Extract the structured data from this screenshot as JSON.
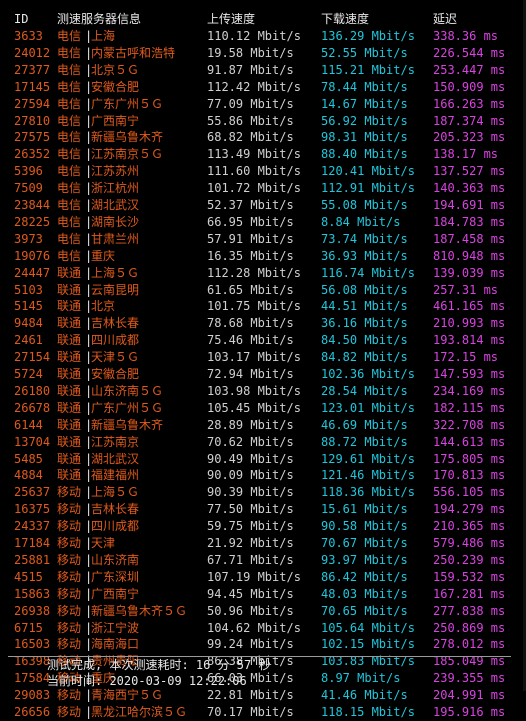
{
  "header": {
    "id": "ID",
    "server": "测速服务器信息",
    "upload": "上传速度",
    "download": "下载速度",
    "latency": "延迟"
  },
  "rows": [
    {
      "id": "3633",
      "isp": "电信",
      "sep": "|",
      "loc": "上海",
      "up": "110.12 Mbit/s",
      "down": "136.29 Mbit/s",
      "lat": "338.36 ms"
    },
    {
      "id": "24012",
      "isp": "电信",
      "sep": "|",
      "loc": "内蒙古呼和浩特",
      "up": "19.58 Mbit/s",
      "down": "52.55 Mbit/s",
      "lat": "226.544 ms"
    },
    {
      "id": "27377",
      "isp": "电信",
      "sep": "|",
      "loc": "北京５Ｇ",
      "up": "91.87 Mbit/s",
      "down": "115.21 Mbit/s",
      "lat": "253.447 ms"
    },
    {
      "id": "17145",
      "isp": "电信",
      "sep": "|",
      "loc": "安徽合肥",
      "up": "112.42 Mbit/s",
      "down": "78.44 Mbit/s",
      "lat": "150.909 ms"
    },
    {
      "id": "27594",
      "isp": "电信",
      "sep": "|",
      "loc": "广东广州５Ｇ",
      "up": "77.09 Mbit/s",
      "down": "14.67 Mbit/s",
      "lat": "166.263 ms"
    },
    {
      "id": "27810",
      "isp": "电信",
      "sep": "|",
      "loc": "广西南宁",
      "up": "55.86 Mbit/s",
      "down": "56.92 Mbit/s",
      "lat": "187.374 ms"
    },
    {
      "id": "27575",
      "isp": "电信",
      "sep": "|",
      "loc": "新疆乌鲁木齐",
      "up": "68.82 Mbit/s",
      "down": "98.31 Mbit/s",
      "lat": "205.323 ms"
    },
    {
      "id": "26352",
      "isp": "电信",
      "sep": "|",
      "loc": "江苏南京５Ｇ",
      "up": "113.49 Mbit/s",
      "down": "88.40 Mbit/s",
      "lat": "138.17 ms"
    },
    {
      "id": "5396",
      "isp": "电信",
      "sep": "|",
      "loc": "江苏苏州",
      "up": "111.60 Mbit/s",
      "down": "120.41 Mbit/s",
      "lat": "137.527 ms"
    },
    {
      "id": "7509",
      "isp": "电信",
      "sep": "|",
      "loc": "浙江杭州",
      "up": "101.72 Mbit/s",
      "down": "112.91 Mbit/s",
      "lat": "140.363 ms"
    },
    {
      "id": "23844",
      "isp": "电信",
      "sep": "|",
      "loc": "湖北武汉",
      "up": "52.37 Mbit/s",
      "down": "55.08 Mbit/s",
      "lat": "194.691 ms"
    },
    {
      "id": "28225",
      "isp": "电信",
      "sep": "|",
      "loc": "湖南长沙",
      "up": "66.95 Mbit/s",
      "down": "8.84 Mbit/s",
      "lat": "184.783 ms"
    },
    {
      "id": "3973",
      "isp": "电信",
      "sep": "|",
      "loc": "甘肃兰州",
      "up": "57.91 Mbit/s",
      "down": "73.74 Mbit/s",
      "lat": "187.458 ms"
    },
    {
      "id": "19076",
      "isp": "电信",
      "sep": "|",
      "loc": "重庆",
      "up": "16.35 Mbit/s",
      "down": "36.93 Mbit/s",
      "lat": "810.948 ms"
    },
    {
      "id": "24447",
      "isp": "联通",
      "sep": "|",
      "loc": "上海５Ｇ",
      "up": "112.28 Mbit/s",
      "down": "116.74 Mbit/s",
      "lat": "139.039 ms"
    },
    {
      "id": "5103",
      "isp": "联通",
      "sep": "|",
      "loc": "云南昆明",
      "up": "61.65 Mbit/s",
      "down": "56.08 Mbit/s",
      "lat": "257.31 ms"
    },
    {
      "id": "5145",
      "isp": "联通",
      "sep": "|",
      "loc": "北京",
      "up": "101.75 Mbit/s",
      "down": "44.51 Mbit/s",
      "lat": "461.165 ms"
    },
    {
      "id": "9484",
      "isp": "联通",
      "sep": "|",
      "loc": "吉林长春",
      "up": "78.68 Mbit/s",
      "down": "36.16 Mbit/s",
      "lat": "210.993 ms"
    },
    {
      "id": "2461",
      "isp": "联通",
      "sep": "|",
      "loc": "四川成都",
      "up": "75.46 Mbit/s",
      "down": "84.50 Mbit/s",
      "lat": "193.814 ms"
    },
    {
      "id": "27154",
      "isp": "联通",
      "sep": "|",
      "loc": "天津５Ｇ",
      "up": "103.17 Mbit/s",
      "down": "84.82 Mbit/s",
      "lat": "172.15 ms"
    },
    {
      "id": "5724",
      "isp": "联通",
      "sep": "|",
      "loc": "安徽合肥",
      "up": "72.94 Mbit/s",
      "down": "102.36 Mbit/s",
      "lat": "147.593 ms"
    },
    {
      "id": "26180",
      "isp": "联通",
      "sep": "|",
      "loc": "山东济南５Ｇ",
      "up": "103.98 Mbit/s",
      "down": "28.54 Mbit/s",
      "lat": "234.169 ms"
    },
    {
      "id": "26678",
      "isp": "联通",
      "sep": "|",
      "loc": "广东广州５Ｇ",
      "up": "105.45 Mbit/s",
      "down": "123.01 Mbit/s",
      "lat": "182.115 ms"
    },
    {
      "id": "6144",
      "isp": "联通",
      "sep": "|",
      "loc": "新疆乌鲁木齐",
      "up": "28.89 Mbit/s",
      "down": "46.69 Mbit/s",
      "lat": "322.708 ms"
    },
    {
      "id": "13704",
      "isp": "联通",
      "sep": "|",
      "loc": "江苏南京",
      "up": "70.62 Mbit/s",
      "down": "88.72 Mbit/s",
      "lat": "144.613 ms"
    },
    {
      "id": "5485",
      "isp": "联通",
      "sep": "|",
      "loc": "湖北武汉",
      "up": "90.49 Mbit/s",
      "down": "129.61 Mbit/s",
      "lat": "175.805 ms"
    },
    {
      "id": "4884",
      "isp": "联通",
      "sep": "|",
      "loc": "福建福州",
      "up": "90.09 Mbit/s",
      "down": "121.46 Mbit/s",
      "lat": "170.813 ms"
    },
    {
      "id": "25637",
      "isp": "移动",
      "sep": "|",
      "loc": "上海５Ｇ",
      "up": "90.39 Mbit/s",
      "down": "118.36 Mbit/s",
      "lat": "556.105 ms"
    },
    {
      "id": "16375",
      "isp": "移动",
      "sep": "|",
      "loc": "吉林长春",
      "up": "77.50 Mbit/s",
      "down": "15.61 Mbit/s",
      "lat": "194.279 ms"
    },
    {
      "id": "24337",
      "isp": "移动",
      "sep": "|",
      "loc": "四川成都",
      "up": "59.75 Mbit/s",
      "down": "90.58 Mbit/s",
      "lat": "210.365 ms"
    },
    {
      "id": "17184",
      "isp": "移动",
      "sep": "|",
      "loc": "天津",
      "up": "21.92 Mbit/s",
      "down": "70.67 Mbit/s",
      "lat": "579.486 ms"
    },
    {
      "id": "25881",
      "isp": "移动",
      "sep": "|",
      "loc": "山东济南",
      "up": "67.71 Mbit/s",
      "down": "93.97 Mbit/s",
      "lat": "250.239 ms"
    },
    {
      "id": "4515",
      "isp": "移动",
      "sep": "|",
      "loc": "广东深圳",
      "up": "107.19 Mbit/s",
      "down": "86.42 Mbit/s",
      "lat": "159.532 ms"
    },
    {
      "id": "15863",
      "isp": "移动",
      "sep": "|",
      "loc": "广西南宁",
      "up": "94.45 Mbit/s",
      "down": "48.03 Mbit/s",
      "lat": "167.281 ms"
    },
    {
      "id": "26938",
      "isp": "移动",
      "sep": "|",
      "loc": "新疆乌鲁木齐５Ｇ",
      "up": "50.96 Mbit/s",
      "down": "70.65 Mbit/s",
      "lat": "277.838 ms"
    },
    {
      "id": "6715",
      "isp": "移动",
      "sep": "|",
      "loc": "浙江宁波",
      "up": "104.62 Mbit/s",
      "down": "105.64 Mbit/s",
      "lat": "250.869 ms"
    },
    {
      "id": "16503",
      "isp": "移动",
      "sep": "|",
      "loc": "海南海口",
      "up": "99.24 Mbit/s",
      "down": "102.15 Mbit/s",
      "lat": "278.012 ms"
    },
    {
      "id": "16398",
      "isp": "移动",
      "sep": "|",
      "loc": "贵州贵阳",
      "up": "86.38 Mbit/s",
      "down": "103.83 Mbit/s",
      "lat": "185.049 ms"
    },
    {
      "id": "17584",
      "isp": "移动",
      "sep": "|",
      "loc": "重庆",
      "up": "66.03 Mbit/s",
      "down": "8.97 Mbit/s",
      "lat": "239.355 ms"
    },
    {
      "id": "29083",
      "isp": "移动",
      "sep": "|",
      "loc": "青海西宁５Ｇ",
      "up": "22.81 Mbit/s",
      "down": "41.46 Mbit/s",
      "lat": "204.991 ms"
    },
    {
      "id": "26656",
      "isp": "移动",
      "sep": "|",
      "loc": "黑龙江哈尔滨５Ｇ",
      "up": "70.17 Mbit/s",
      "down": "118.15 Mbit/s",
      "lat": "195.916 ms"
    }
  ],
  "footer": {
    "line1": "测试完成, 本次测速耗时: 16 分 57 秒",
    "line2": "当前时间: 2020-03-09 12:22:06"
  },
  "colors": {
    "background": "#000000",
    "id_and_location": "#e05a1c",
    "upload": "#cfd0d2",
    "download": "#1fc7dc",
    "latency": "#d943e0",
    "text": "#e8e8e8"
  }
}
